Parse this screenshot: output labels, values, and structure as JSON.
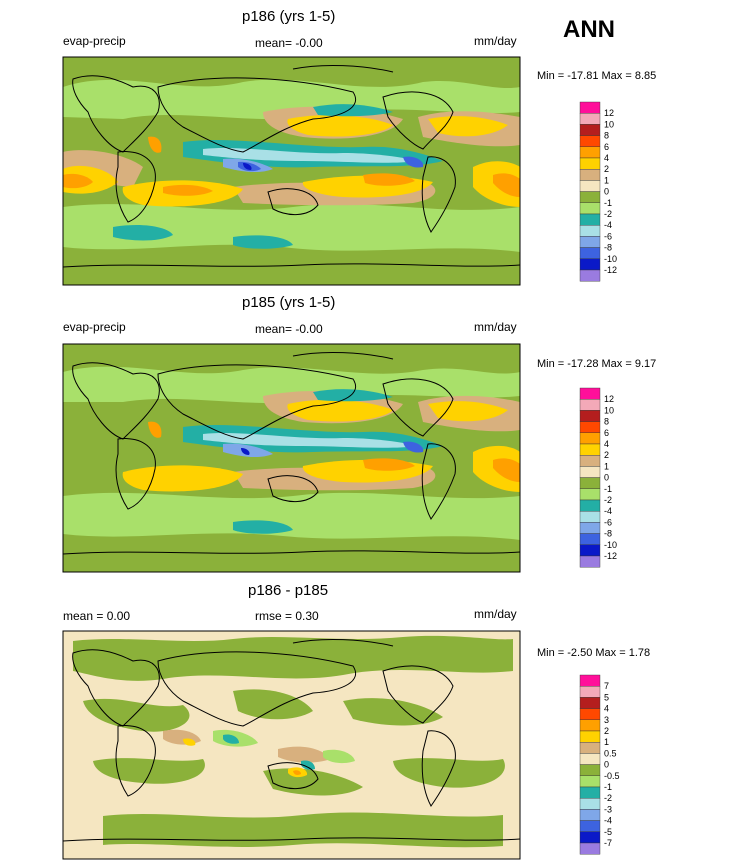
{
  "season": "ANN",
  "palette": {
    "c12": "#ff0f9a",
    "c10": "#f3a9b8",
    "c8": "#b41e1e",
    "c6": "#ff4800",
    "c4": "#ffa000",
    "c2": "#ffd200",
    "c1": "#d8b07e",
    "c0": "#f5e6c1",
    "cm1": "#8bb13a",
    "cm2": "#a9e06a",
    "cm4": "#23afa5",
    "cm6": "#a9e0e6",
    "cm8": "#7fa7e8",
    "cm10": "#3d63e0",
    "cm12": "#0a19c8",
    "cm13": "#9a7be0",
    "land_outline": "#000000"
  },
  "panels": [
    {
      "title": "p186 (yrs 1-5)",
      "left_label": "evap-precip",
      "center_label": "mean=  -0.00",
      "units": "mm/day",
      "minmax": "Min = -17.81 Max =   8.85",
      "colorbar_labels": [
        "12",
        "10",
        "8",
        "6",
        "4",
        "2",
        "1",
        "0",
        "-1",
        "-2",
        "-4",
        "-6",
        "-8",
        "-10",
        "-12"
      ],
      "colorbar_colors": [
        "c12",
        "c10",
        "c8",
        "c6",
        "c4",
        "c2",
        "c1",
        "c0",
        "cm1",
        "cm2",
        "cm4",
        "cm6",
        "cm8",
        "cm10",
        "cm12",
        "cm13"
      ]
    },
    {
      "title": "p185 (yrs 1-5)",
      "left_label": "evap-precip",
      "center_label": "mean=  -0.00",
      "units": "mm/day",
      "minmax": "Min = -17.28 Max =   9.17",
      "colorbar_labels": [
        "12",
        "10",
        "8",
        "6",
        "4",
        "2",
        "1",
        "0",
        "-1",
        "-2",
        "-4",
        "-6",
        "-8",
        "-10",
        "-12"
      ],
      "colorbar_colors": [
        "c12",
        "c10",
        "c8",
        "c6",
        "c4",
        "c2",
        "c1",
        "c0",
        "cm1",
        "cm2",
        "cm4",
        "cm6",
        "cm8",
        "cm10",
        "cm12",
        "cm13"
      ]
    },
    {
      "title": "p186 - p185",
      "left_label": "mean =   0.00",
      "center_label": "rmse =   0.30",
      "units": "mm/day",
      "minmax": "Min =  -2.50 Max =   1.78",
      "colorbar_labels": [
        "7",
        "5",
        "4",
        "3",
        "2",
        "1",
        "0.5",
        "0",
        "-0.5",
        "-1",
        "-2",
        "-3",
        "-4",
        "-5",
        "-7"
      ],
      "colorbar_colors": [
        "c12",
        "c10",
        "c8",
        "c6",
        "c4",
        "c2",
        "c1",
        "c0",
        "cm1",
        "cm2",
        "cm4",
        "cm6",
        "cm8",
        "cm10",
        "cm12",
        "cm13"
      ]
    }
  ]
}
